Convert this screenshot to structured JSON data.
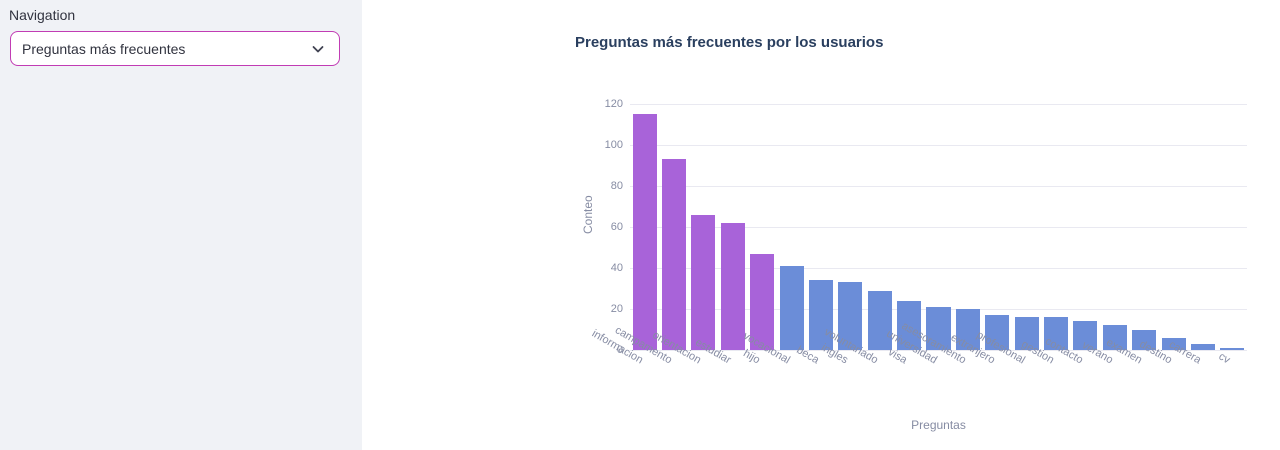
{
  "sidebar": {
    "nav_label": "Navigation",
    "select": {
      "value": "Preguntas más frecuentes"
    }
  },
  "chart_data": {
    "type": "bar",
    "title": "Preguntas más frecuentes por los usuarios",
    "xlabel": "Preguntas",
    "ylabel": "Conteo",
    "categories": [
      "informacion",
      "campamento",
      "orientacion",
      "estudiar",
      "hijo",
      "vocacional",
      "beca",
      "ingles",
      "voluntariado",
      "visa",
      "universidad",
      "asesoramiento",
      "extranjero",
      "profesional",
      "gestion",
      "contacto",
      "verano",
      "examen",
      "destino",
      "carrera",
      "cv"
    ],
    "values": [
      115,
      93,
      66,
      62,
      47,
      41,
      34,
      33,
      29,
      24,
      21,
      20,
      17,
      16,
      16,
      14,
      12,
      10,
      6,
      3,
      1
    ],
    "ylim": [
      0,
      120
    ],
    "yticks": [
      0,
      20,
      40,
      60,
      80,
      100,
      120
    ],
    "grid": true,
    "legend": false,
    "highlight_count": 5,
    "colors": {
      "highlight": "#a863d9",
      "default": "#6b8dd8"
    }
  },
  "theme": {
    "accent": "#c13cb4",
    "sidebar_bg": "#f0f2f6",
    "title_color": "#2a3f5f",
    "axis_text_color": "#868ca3",
    "grid_color": "#e9e9f1",
    "text_color": "#31333f"
  }
}
